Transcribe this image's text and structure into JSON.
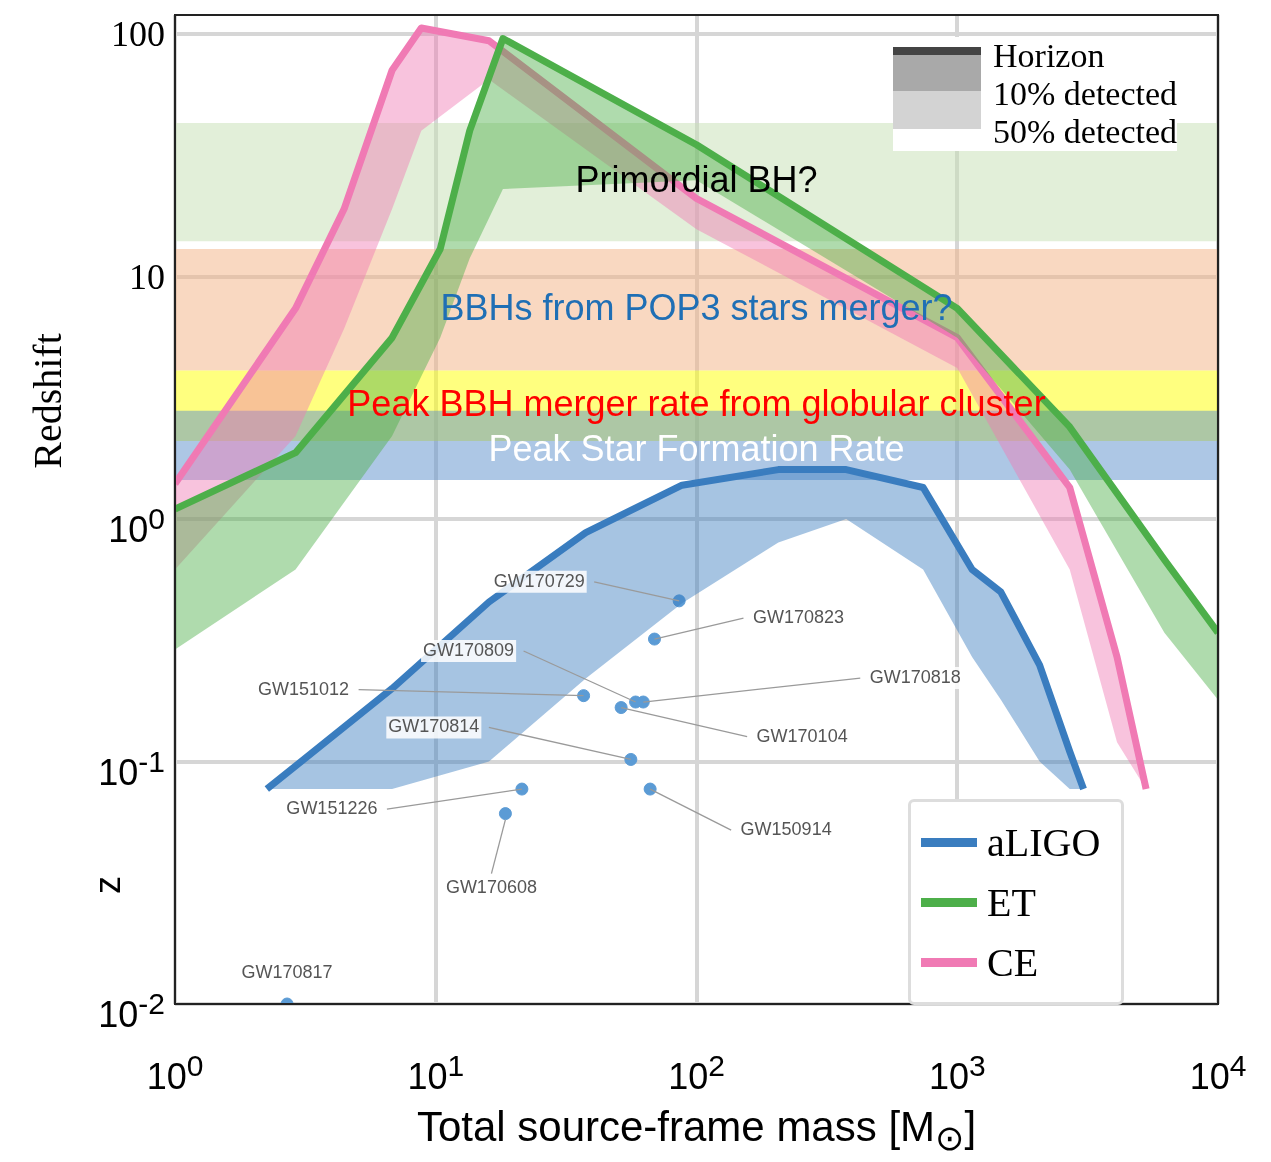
{
  "chart_data": {
    "type": "line",
    "xlabel": "Total source-frame mass [M$_{⊙}$]",
    "ylabel": "Redshift",
    "log": "xy",
    "grid": true,
    "legend": "bottom right",
    "marker": "none",
    "xlim": [
      1,
      10000
    ],
    "xticks": [
      {
        "value": 1,
        "label": "10$^{0}$"
      },
      {
        "value": 10,
        "label": "10$^{1}$"
      },
      {
        "value": 100,
        "label": "10$^{2}$"
      },
      {
        "value": 1000,
        "label": "10$^{3}$"
      },
      {
        "value": 10000,
        "label": "10$^{4}$"
      }
    ],
    "ylim": [
      0.01,
      120
    ],
    "yticks": [
      {
        "value": 0.01,
        "label": "10$^{-2}$"
      },
      {
        "value": 0.1,
        "label": "10$^{-1}$"
      },
      {
        "value": 1,
        "label": "10$^{0}$"
      },
      10,
      100
    ],
    "series": [
      {
        "name": "aLIGO",
        "color": "#3a7dbf",
        "x": [
          2.25,
          6.8,
          16,
          37.6,
          88,
          206,
          375,
          740,
          1140,
          1470,
          2070,
          2700,
          3050
        ],
        "values": [
          0.077,
          0.2,
          0.455,
          0.88,
          1.38,
          1.6,
          1.6,
          1.35,
          0.62,
          0.5,
          0.25,
          0.11,
          0.077
        ],
        "lower": [
          0.077,
          0.077,
          0.1,
          0.22,
          0.45,
          0.8,
          1.0,
          0.62,
          0.27,
          0.18,
          0.1,
          0.077,
          0.077
        ],
        "upper": [
          0.077,
          0.2,
          0.455,
          0.88,
          1.38,
          1.6,
          1.6,
          1.35,
          0.62,
          0.5,
          0.25,
          0.11,
          0.077
        ]
      },
      {
        "name": "ET",
        "color": "#4daf4a",
        "x": [
          1,
          2.9,
          6.8,
          10.4,
          13.5,
          18.1,
          100,
          1000,
          2700,
          6230,
          10000
        ],
        "values": [
          1.1,
          1.88,
          5.6,
          13,
          40,
          96,
          35,
          7.4,
          2.4,
          0.68,
          0.34
        ],
        "lower": [
          0.29,
          0.62,
          2.2,
          5.6,
          11.9,
          23,
          25,
          5.6,
          1.6,
          0.34,
          0.18
        ],
        "upper": [
          1.1,
          1.88,
          5.6,
          13,
          40,
          96,
          35,
          7.4,
          2.4,
          0.68,
          0.34
        ]
      },
      {
        "name": "CE",
        "color": "#f07ab4",
        "x": [
          1,
          2.9,
          4.45,
          6.8,
          8.8,
          16,
          100,
          1000,
          2700,
          4100,
          5300
        ],
        "values": [
          1.4,
          7.4,
          19,
          71,
          106,
          94,
          21,
          5.6,
          1.35,
          0.27,
          0.077
        ],
        "lower": [
          0.62,
          2.2,
          6.1,
          19,
          40,
          65,
          15.7,
          4.2,
          0.62,
          0.12,
          0.077
        ],
        "upper": [
          1.4,
          7.4,
          19,
          71,
          106,
          94,
          21,
          5.6,
          1.35,
          0.27,
          0.077
        ]
      },
      {
        "type": "scatter",
        "marker": "circle",
        "color": "#5b9bd5",
        "x": [
          85.8,
          69,
          58.4,
          62.5,
          36.9,
          51.4,
          56,
          21.4,
          66.4,
          18.5,
          2.69
        ],
        "values": [
          0.46,
          0.32,
          0.176,
          0.176,
          0.187,
          0.167,
          0.102,
          0.077,
          0.077,
          0.061,
          0.01
        ]
      }
    ],
    "bands": [
      {
        "axis": "y",
        "from": 14,
        "to": 43,
        "label": "Primordial BH?",
        "color": "#c6e0b4"
      },
      {
        "axis": "y",
        "from": 4.1,
        "to": 13,
        "label": "BBHs from POP3 stars merger?",
        "color": "#f4b183"
      },
      {
        "axis": "y",
        "from": 2.1,
        "to": 4.1,
        "label": "Peak BBH merger rate from globular cluster",
        "color": "#ffff00"
      },
      {
        "axis": "y",
        "from": 1.45,
        "to": 2.8,
        "label": "Peak Star Formation Rate",
        "color": "#5b8fcb"
      }
    ],
    "annotations": [
      "Horizon",
      "10% detected",
      "50% detected",
      "z",
      {
        "text": "GW170729",
        "x": 85.8,
        "y": 0.46
      },
      {
        "text": "GW170823",
        "x": 69,
        "y": 0.32
      },
      {
        "text": "GW170809",
        "x": 58.4,
        "y": 0.176
      },
      {
        "text": "GW170818",
        "x": 62.5,
        "y": 0.176
      },
      {
        "text": "GW151012",
        "x": 36.9,
        "y": 0.187
      },
      {
        "text": "GW170104",
        "x": 51.4,
        "y": 0.167
      },
      {
        "text": "GW170814",
        "x": 56,
        "y": 0.102
      },
      {
        "text": "GW151226",
        "x": 21.4,
        "y": 0.077
      },
      {
        "text": "GW150914",
        "x": 66.4,
        "y": 0.077
      },
      {
        "text": "GW170608",
        "x": 18.5,
        "y": 0.061
      },
      {
        "text": "GW170817",
        "x": 2.69,
        "y": 0.01
      }
    ]
  }
}
